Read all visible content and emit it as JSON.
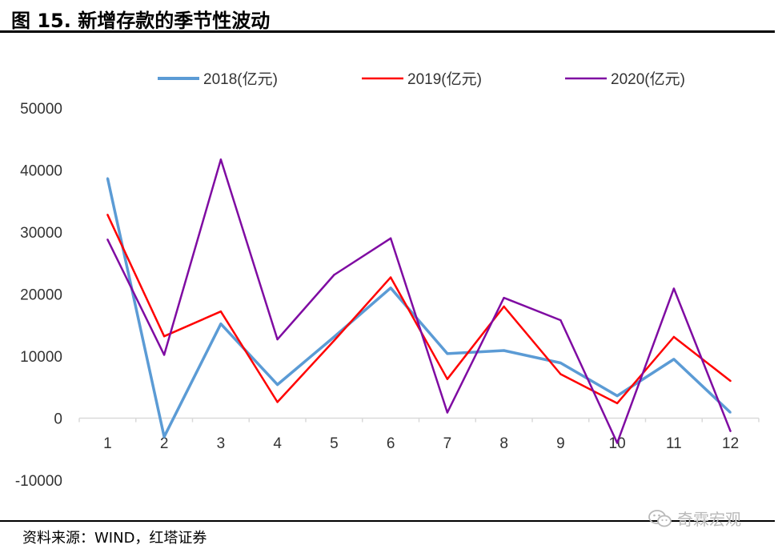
{
  "page": {
    "title": "图 15. 新增存款的季节性波动",
    "source": "资料来源：WIND，红塔证券",
    "watermark": "奇霖宏观",
    "watermark_icon": "wechat-icon"
  },
  "chart_data": {
    "type": "line",
    "title": "",
    "xlabel": "",
    "ylabel": "",
    "categories": [
      "1",
      "2",
      "3",
      "4",
      "5",
      "6",
      "7",
      "8",
      "9",
      "10",
      "11",
      "12"
    ],
    "ylim": [
      -10000,
      50000
    ],
    "yticks": [
      "-10000",
      "0",
      "10000",
      "20000",
      "30000",
      "40000",
      "50000"
    ],
    "grid": false,
    "legend_position": "top",
    "series": [
      {
        "name": "2018(亿元)",
        "color": "#5B9BD5",
        "values": [
          38700,
          -3000,
          15200,
          5400,
          13100,
          21000,
          10400,
          10900,
          8900,
          3600,
          9500,
          900
        ]
      },
      {
        "name": "2019(亿元)",
        "color": "#FF0000",
        "values": [
          32800,
          13200,
          17200,
          2600,
          12500,
          22700,
          6300,
          18000,
          7100,
          2400,
          13100,
          6000
        ]
      },
      {
        "name": "2020(亿元)",
        "color": "#7F0BA2",
        "values": [
          28800,
          10200,
          41700,
          12700,
          23100,
          29000,
          900,
          19400,
          15800,
          -4000,
          20900,
          -2100
        ]
      }
    ]
  }
}
